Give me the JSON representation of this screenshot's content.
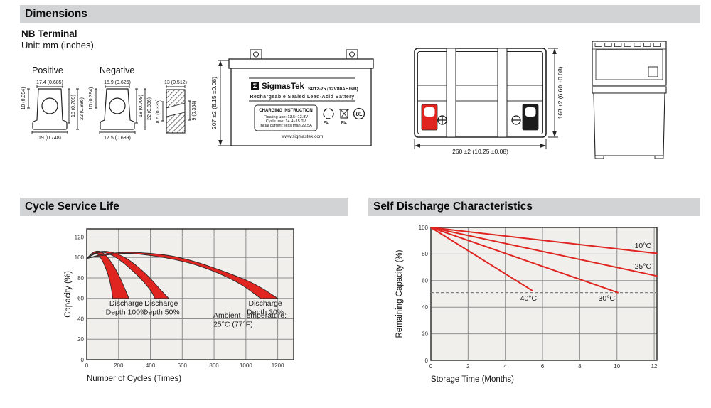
{
  "sections": {
    "dimensions_title": "Dimensions",
    "cycle_title": "Cycle Service Life",
    "self_discharge_title": "Self Discharge Characteristics"
  },
  "terminal": {
    "heading": "NB Terminal",
    "unit": "Unit: mm (inches)",
    "positive_label": "Positive",
    "negative_label": "Negative",
    "positive": {
      "top": "17.4 (0.685)",
      "side": "10 (0.394)",
      "height_inner": "18 (0.709)",
      "height_outer": "22 (0.886)",
      "base": "19 (0.748)"
    },
    "negative": {
      "top": "15.9 (0.626)",
      "side": "10 (0.394)",
      "height_inner": "18 (0.709)",
      "height_outer": "22 (0.886)",
      "base": "17.5 (0.689)"
    },
    "cross_section": {
      "width": "13 (0.512)",
      "left": "8.5 (0.335)",
      "right": "9 (0.354)"
    }
  },
  "battery": {
    "front": {
      "height_dim": "207 ±2 (8.15 ±0.08)",
      "logo_glyph": "Σ",
      "brand": "SigmasTek",
      "model": "SP12-75 (12V80AH/NB)",
      "type_line": "Rechargeable Sealed Lead-Acid Battery",
      "charging_title": "CHARGING INSTRUCTION",
      "charging_line1": "Floating use: 13.5~13.8V",
      "charging_line2": "Cycle use: 14.4~15.0V",
      "charging_line3": "Initial current: less than 22.5A",
      "website": "www.sigmastek.com",
      "pb_recycle": "Pb.",
      "pb_trash": "Pb.",
      "ul_text": "UL"
    },
    "top": {
      "width_dim": "260 ±2 (10.25 ±0.08)",
      "depth_dim": "168 ±2 (6.60 ±0.08)"
    }
  },
  "colors": {
    "red": "#e02420",
    "bar": "#d2d3d5",
    "chart_bg": "#f0efec",
    "grid": "#8e8e8e",
    "frame": "#404040",
    "dash": "#808080",
    "black": "#1b1b1b"
  },
  "chart_data": [
    {
      "type": "area",
      "title": "Cycle Service Life",
      "xlabel": "Number of Cycles (Times)",
      "ylabel": "Capacity (%)",
      "xlim": [
        0,
        1300
      ],
      "ylim": [
        0,
        128
      ],
      "xticks": [
        0,
        200,
        400,
        600,
        800,
        1000,
        1200
      ],
      "yticks": [
        0,
        20,
        40,
        60,
        80,
        100,
        120
      ],
      "grid": true,
      "legend_position": "none",
      "bands": [
        {
          "name": "Discharge Depth 100%",
          "upper": [
            [
              0,
              99
            ],
            [
              40,
              105
            ],
            [
              80,
              106
            ],
            [
              120,
              102
            ],
            [
              160,
              94
            ],
            [
              200,
              83
            ],
            [
              235,
              71
            ],
            [
              265,
              60
            ]
          ],
          "lower": [
            [
              0,
              99
            ],
            [
              30,
              103
            ],
            [
              60,
              104
            ],
            [
              90,
              99
            ],
            [
              115,
              91
            ],
            [
              140,
              80
            ],
            [
              155,
              69
            ],
            [
              163,
              60
            ]
          ]
        },
        {
          "name": "Discharge Depth 50%",
          "upper": [
            [
              0,
              99
            ],
            [
              50,
              104
            ],
            [
              110,
              106
            ],
            [
              180,
              104
            ],
            [
              250,
              99
            ],
            [
              320,
              91
            ],
            [
              390,
              81
            ],
            [
              460,
              69
            ],
            [
              515,
              60
            ]
          ],
          "lower": [
            [
              0,
              99
            ],
            [
              45,
              103
            ],
            [
              100,
              105
            ],
            [
              160,
              102
            ],
            [
              220,
              96
            ],
            [
              280,
              88
            ],
            [
              340,
              79
            ],
            [
              400,
              68
            ],
            [
              428,
              60
            ]
          ]
        },
        {
          "name": "Discharge Depth 30%",
          "upper": [
            [
              0,
              99
            ],
            [
              100,
              103
            ],
            [
              250,
              105
            ],
            [
              400,
              104
            ],
            [
              550,
              101
            ],
            [
              700,
              95
            ],
            [
              850,
              87
            ],
            [
              1000,
              78
            ],
            [
              1100,
              70
            ],
            [
              1200,
              60
            ]
          ],
          "lower": [
            [
              0,
              99
            ],
            [
              100,
              102
            ],
            [
              250,
              104
            ],
            [
              400,
              102
            ],
            [
              550,
              98
            ],
            [
              700,
              92
            ],
            [
              850,
              83
            ],
            [
              975,
              73
            ],
            [
              1075,
              62
            ],
            [
              1090,
              60
            ]
          ]
        }
      ],
      "annotations": [
        {
          "lines": [
            "Discharge",
            "Depth 100%"
          ],
          "x": 248,
          "y": 53,
          "anchor": "middle"
        },
        {
          "lines": [
            "Discharge",
            "Depth 50%"
          ],
          "x": 468,
          "y": 53,
          "anchor": "middle"
        },
        {
          "lines": [
            "Discharge",
            "Depth 30%"
          ],
          "x": 1122,
          "y": 53,
          "anchor": "middle"
        },
        {
          "lines": [
            "Ambient Temperature:",
            "25°C (77°F)"
          ],
          "x": 795,
          "y": 41,
          "anchor": "start"
        }
      ]
    },
    {
      "type": "line",
      "title": "Self Discharge Characteristics",
      "xlabel": "Storage Time (Months)",
      "ylabel": "Remaining Capacity (%)",
      "xlim": [
        0,
        12.15
      ],
      "ylim": [
        0,
        100
      ],
      "xticks": [
        0,
        2,
        4,
        6,
        8,
        10,
        12
      ],
      "yticks": [
        0,
        20,
        40,
        60,
        80,
        100
      ],
      "grid": true,
      "legend_position": "inline-labels",
      "series": [
        {
          "name": "10°C",
          "points": [
            [
              0,
              100
            ],
            [
              12.15,
              80.5
            ]
          ],
          "label_x": 10.95,
          "label_y": 84.5
        },
        {
          "name": "25°C",
          "points": [
            [
              0,
              100
            ],
            [
              12.15,
              63.5
            ]
          ],
          "label_x": 10.95,
          "label_y": 69
        },
        {
          "name": "30°C",
          "points": [
            [
              0,
              100
            ],
            [
              10.05,
              51
            ]
          ],
          "label_x": 9.0,
          "label_y": 45
        },
        {
          "name": "40°C",
          "points": [
            [
              0,
              100
            ],
            [
              5.45,
              52.5
            ]
          ],
          "label_x": 4.8,
          "label_y": 45
        }
      ],
      "dashed_line_y": 51
    }
  ]
}
